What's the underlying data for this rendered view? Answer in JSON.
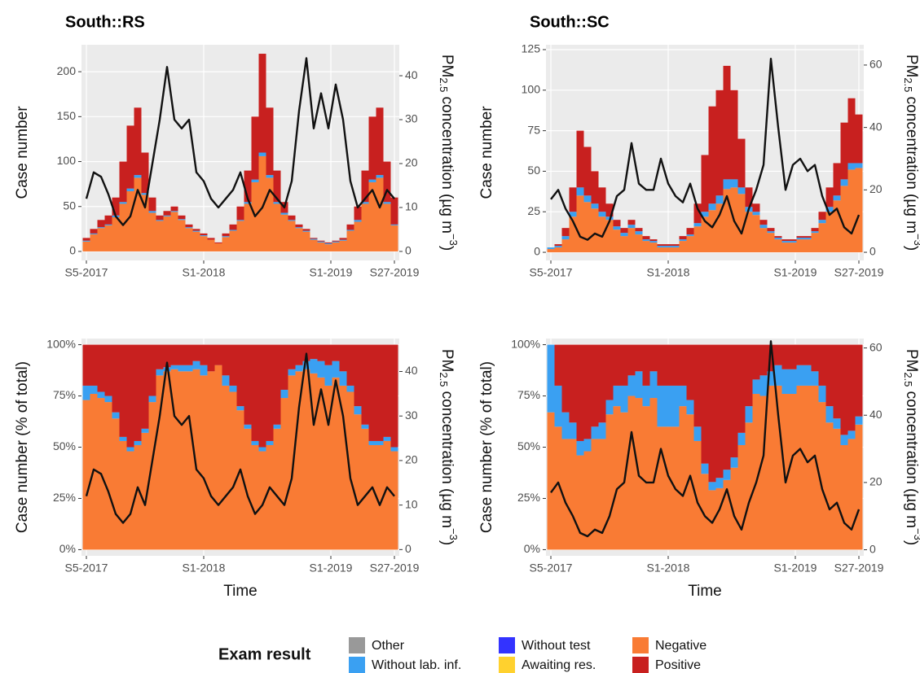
{
  "chart_data": [
    {
      "type": "bar",
      "stacked": true,
      "title": "South::RS",
      "ylabel": "Case number",
      "y2label": {
        "main": "PM",
        "sub": "2.5",
        "mid": " concentration (µg m",
        "sup": "−3",
        "end": ")"
      },
      "xlim": [
        -2,
        128
      ],
      "xticks": [
        {
          "value": 0,
          "label": "S5-2017"
        },
        {
          "value": 48,
          "label": "S1-2018"
        },
        {
          "value": 100,
          "label": "S1-2019"
        },
        {
          "value": 126,
          "label": "S27-2019"
        }
      ],
      "ylim": [
        -10,
        230
      ],
      "yticks": [
        0,
        50,
        100,
        150,
        200
      ],
      "y2lim": [
        -2.05,
        47.05
      ],
      "y2ticks": [
        0,
        10,
        20,
        30,
        40
      ],
      "grid": true,
      "x": [
        0,
        3,
        6,
        9,
        12,
        15,
        18,
        21,
        24,
        27,
        30,
        33,
        36,
        39,
        42,
        45,
        48,
        51,
        54,
        57,
        60,
        63,
        66,
        69,
        72,
        75,
        78,
        81,
        84,
        87,
        90,
        93,
        96,
        99,
        102,
        105,
        108,
        111,
        114,
        117,
        120,
        123,
        126
      ],
      "series": [
        {
          "color": "#f97b34",
          "values": [
            11,
            19,
            26,
            29,
            38,
            53,
            67,
            82,
            63,
            43,
            34,
            39,
            44,
            35,
            26,
            22,
            17,
            13,
            9,
            16,
            23,
            34,
            53,
            77,
            106,
            82,
            53,
            41,
            34,
            26,
            22,
            13,
            10,
            8,
            10,
            12,
            23,
            33,
            53,
            77,
            82,
            53,
            29
          ]
        },
        {
          "color": "#3aa0f2",
          "values": [
            1,
            1,
            1,
            1,
            2,
            2,
            3,
            3,
            2,
            2,
            1,
            1,
            1,
            1,
            1,
            1,
            1,
            0,
            0,
            1,
            1,
            1,
            2,
            3,
            4,
            3,
            2,
            2,
            1,
            1,
            1,
            1,
            1,
            1,
            1,
            1,
            1,
            2,
            2,
            3,
            3,
            2,
            1
          ]
        },
        {
          "color": "#c8201f",
          "values": [
            3,
            5,
            8,
            10,
            20,
            45,
            70,
            75,
            45,
            15,
            5,
            5,
            5,
            4,
            3,
            2,
            2,
            2,
            1,
            3,
            6,
            15,
            35,
            70,
            110,
            75,
            35,
            12,
            5,
            3,
            2,
            1,
            1,
            1,
            1,
            2,
            6,
            15,
            35,
            70,
            75,
            45,
            30
          ]
        },
        {
          "color": "#111111",
          "axis": "y2",
          "values": [
            12,
            18,
            17,
            13,
            8,
            6,
            8,
            14,
            10,
            20,
            30,
            42,
            30,
            28,
            30,
            18,
            16,
            12,
            10,
            12,
            14,
            18,
            12,
            8,
            10,
            14,
            12,
            10,
            16,
            32,
            44,
            28,
            36,
            28,
            38,
            30,
            16,
            10,
            12,
            14,
            10,
            14,
            12
          ]
        }
      ]
    },
    {
      "type": "bar",
      "stacked": true,
      "title": "South::SC",
      "ylabel": "Case number",
      "y2label": {
        "main": "PM",
        "sub": "2.5",
        "mid": " concentration (µg m",
        "sup": "−3",
        "end": ")"
      },
      "xlim": [
        -2,
        128
      ],
      "xticks": [
        {
          "value": 0,
          "label": "S5-2017"
        },
        {
          "value": 48,
          "label": "S1-2018"
        },
        {
          "value": 100,
          "label": "S1-2019"
        },
        {
          "value": 126,
          "label": "S27-2019"
        }
      ],
      "ylim": [
        -5,
        128
      ],
      "yticks": [
        0,
        25,
        50,
        75,
        100,
        125
      ],
      "y2lim": [
        -2.6,
        66.5
      ],
      "y2ticks": [
        0,
        20,
        40,
        60
      ],
      "grid": true,
      "x": [
        0,
        3,
        6,
        9,
        12,
        15,
        18,
        21,
        24,
        27,
        30,
        33,
        36,
        39,
        42,
        45,
        48,
        51,
        54,
        57,
        60,
        63,
        66,
        69,
        72,
        75,
        78,
        81,
        84,
        87,
        90,
        93,
        96,
        99,
        102,
        105,
        108,
        111,
        114,
        117,
        120,
        123,
        126
      ],
      "series": [
        {
          "color": "#f97b34",
          "values": [
            2,
            3,
            8,
            22,
            35,
            31,
            27,
            22,
            20,
            14,
            10,
            15,
            11,
            7,
            6,
            3,
            3,
            3,
            7,
            10,
            16,
            22,
            26,
            30,
            39,
            40,
            36,
            25,
            23,
            15,
            12,
            8,
            6,
            6,
            8,
            8,
            12,
            18,
            25,
            32,
            41,
            51,
            52
          ]
        },
        {
          "color": "#3aa0f2",
          "values": [
            1,
            1,
            2,
            3,
            5,
            4,
            3,
            3,
            2,
            2,
            2,
            2,
            2,
            1,
            1,
            1,
            1,
            1,
            1,
            1,
            2,
            3,
            4,
            5,
            6,
            5,
            4,
            3,
            2,
            2,
            1,
            1,
            1,
            1,
            1,
            1,
            1,
            2,
            3,
            3,
            4,
            4,
            3
          ]
        },
        {
          "color": "#c8201f",
          "values": [
            0,
            1,
            5,
            15,
            35,
            30,
            20,
            15,
            8,
            4,
            3,
            3,
            2,
            2,
            1,
            1,
            1,
            1,
            2,
            4,
            12,
            35,
            60,
            65,
            70,
            55,
            30,
            12,
            5,
            3,
            2,
            1,
            1,
            1,
            1,
            1,
            2,
            5,
            12,
            20,
            35,
            40,
            30
          ]
        },
        {
          "color": "#111111",
          "axis": "y2",
          "values": [
            17,
            20,
            14,
            10,
            5,
            4,
            6,
            5,
            10,
            18,
            20,
            35,
            22,
            20,
            20,
            30,
            22,
            18,
            16,
            22,
            14,
            10,
            8,
            12,
            18,
            10,
            6,
            14,
            20,
            28,
            62,
            40,
            20,
            28,
            30,
            26,
            28,
            18,
            12,
            14,
            8,
            6,
            12
          ]
        }
      ]
    },
    {
      "type": "bar",
      "stacked": true,
      "ylabel": "Case number (% of total)",
      "xlabel": "Time",
      "y2label": {
        "main": "PM",
        "sub": "2.5",
        "mid": " concentration (µg m",
        "sup": "−3",
        "end": ")"
      },
      "xlim": [
        -2,
        128
      ],
      "xticks": [
        {
          "value": 0,
          "label": "S5-2017"
        },
        {
          "value": 48,
          "label": "S1-2018"
        },
        {
          "value": 100,
          "label": "S1-2019"
        },
        {
          "value": 126,
          "label": "S27-2019"
        }
      ],
      "ylim": [
        -3,
        103
      ],
      "yticks": [
        {
          "value": 0,
          "label": "0%"
        },
        {
          "value": 25,
          "label": "25%"
        },
        {
          "value": 50,
          "label": "50%"
        },
        {
          "value": 75,
          "label": "75%"
        },
        {
          "value": 100,
          "label": "100%"
        }
      ],
      "y2lim": [
        -1.4,
        47.4
      ],
      "y2ticks": [
        0,
        10,
        20,
        30,
        40
      ],
      "grid": true,
      "x": [
        0,
        3,
        6,
        9,
        12,
        15,
        18,
        21,
        24,
        27,
        30,
        33,
        36,
        39,
        42,
        45,
        48,
        51,
        54,
        57,
        60,
        63,
        66,
        69,
        72,
        75,
        78,
        81,
        84,
        87,
        90,
        93,
        96,
        99,
        102,
        105,
        108,
        111,
        114,
        117,
        120,
        123,
        126
      ],
      "series": [
        {
          "color": "#f97b34",
          "values": [
            73,
            76,
            74,
            72,
            64,
            53,
            48,
            51,
            57,
            72,
            85,
            87,
            88,
            87,
            87,
            88,
            85,
            87,
            90,
            80,
            77,
            68,
            59,
            51,
            48,
            51,
            59,
            74,
            85,
            87,
            88,
            86,
            84,
            80,
            84,
            80,
            77,
            66,
            59,
            51,
            51,
            53,
            48
          ]
        },
        {
          "color": "#3aa0f2",
          "values": [
            7,
            4,
            3,
            3,
            3,
            2,
            2,
            2,
            2,
            3,
            3,
            2,
            2,
            3,
            3,
            4,
            5,
            0,
            0,
            5,
            3,
            2,
            2,
            2,
            2,
            2,
            2,
            4,
            3,
            3,
            4,
            7,
            8,
            10,
            8,
            7,
            3,
            4,
            2,
            2,
            2,
            2,
            2
          ]
        },
        {
          "color": "#c8201f",
          "values": [
            20,
            20,
            23,
            25,
            33,
            45,
            50,
            47,
            41,
            25,
            12,
            11,
            10,
            10,
            10,
            8,
            10,
            13,
            10,
            15,
            20,
            30,
            39,
            47,
            50,
            47,
            39,
            22,
            12,
            10,
            8,
            7,
            8,
            10,
            8,
            13,
            20,
            30,
            39,
            47,
            47,
            45,
            50
          ]
        },
        {
          "color": "#111111",
          "axis": "y2",
          "values": [
            12,
            18,
            17,
            13,
            8,
            6,
            8,
            14,
            10,
            20,
            30,
            42,
            30,
            28,
            30,
            18,
            16,
            12,
            10,
            12,
            14,
            18,
            12,
            8,
            10,
            14,
            12,
            10,
            16,
            32,
            44,
            28,
            36,
            28,
            38,
            30,
            16,
            10,
            12,
            14,
            10,
            14,
            12
          ]
        }
      ]
    },
    {
      "type": "bar",
      "stacked": true,
      "ylabel": "Case number (% of total)",
      "xlabel": "Time",
      "y2label": {
        "main": "PM",
        "sub": "2.5",
        "mid": " concentration (µg m",
        "sup": "−3",
        "end": ")"
      },
      "xlim": [
        -2,
        128
      ],
      "xticks": [
        {
          "value": 0,
          "label": "S5-2017"
        },
        {
          "value": 48,
          "label": "S1-2018"
        },
        {
          "value": 100,
          "label": "S1-2019"
        },
        {
          "value": 126,
          "label": "S27-2019"
        }
      ],
      "ylim": [
        -3,
        103
      ],
      "yticks": [
        {
          "value": 0,
          "label": "0%"
        },
        {
          "value": 25,
          "label": "25%"
        },
        {
          "value": 50,
          "label": "50%"
        },
        {
          "value": 75,
          "label": "75%"
        },
        {
          "value": 100,
          "label": "100%"
        }
      ],
      "y2lim": [
        -1.8,
        62.8
      ],
      "y2ticks": [
        0,
        20,
        40,
        60
      ],
      "grid": true,
      "x": [
        0,
        3,
        6,
        9,
        12,
        15,
        18,
        21,
        24,
        27,
        30,
        33,
        36,
        39,
        42,
        45,
        48,
        51,
        54,
        57,
        60,
        63,
        66,
        69,
        72,
        75,
        78,
        81,
        84,
        87,
        90,
        93,
        96,
        99,
        102,
        105,
        108,
        111,
        114,
        117,
        120,
        123,
        126
      ],
      "series": [
        {
          "color": "#f97b34",
          "values": [
            67,
            60,
            54,
            54,
            46,
            48,
            54,
            54,
            66,
            70,
            67,
            75,
            74,
            70,
            74,
            60,
            60,
            60,
            70,
            66,
            53,
            37,
            29,
            30,
            34,
            40,
            51,
            62,
            76,
            75,
            80,
            80,
            76,
            76,
            80,
            80,
            80,
            72,
            62,
            59,
            51,
            54,
            61
          ]
        },
        {
          "color": "#3aa0f2",
          "values": [
            33,
            20,
            13,
            8,
            7,
            6,
            6,
            8,
            7,
            10,
            13,
            10,
            13,
            10,
            13,
            20,
            20,
            20,
            10,
            7,
            7,
            5,
            4,
            5,
            5,
            5,
            6,
            8,
            7,
            10,
            7,
            10,
            12,
            12,
            10,
            10,
            7,
            8,
            8,
            5,
            5,
            4,
            4
          ]
        },
        {
          "color": "#c8201f",
          "values": [
            0,
            20,
            33,
            38,
            47,
            46,
            40,
            38,
            27,
            20,
            20,
            15,
            13,
            20,
            13,
            20,
            20,
            20,
            20,
            27,
            40,
            58,
            67,
            65,
            61,
            55,
            43,
            30,
            17,
            15,
            13,
            10,
            12,
            12,
            10,
            10,
            13,
            20,
            30,
            36,
            44,
            42,
            35
          ]
        },
        {
          "color": "#111111",
          "axis": "y2",
          "values": [
            17,
            20,
            14,
            10,
            5,
            4,
            6,
            5,
            10,
            18,
            20,
            35,
            22,
            20,
            20,
            30,
            22,
            18,
            16,
            22,
            14,
            10,
            8,
            12,
            18,
            10,
            6,
            14,
            20,
            28,
            62,
            40,
            20,
            28,
            30,
            26,
            28,
            18,
            12,
            14,
            8,
            6,
            12
          ]
        }
      ]
    }
  ],
  "legend": {
    "title": "Exam result",
    "items": [
      {
        "name": "Other",
        "color": "#999999"
      },
      {
        "name": "Without lab. inf.",
        "color": "#3aa0f2"
      },
      {
        "name": "Without test",
        "color": "#3333ff"
      },
      {
        "name": "Awaiting res.",
        "color": "#ffd12e"
      },
      {
        "name": "Negative",
        "color": "#f97b34"
      },
      {
        "name": "Positive",
        "color": "#c8201f"
      }
    ]
  }
}
